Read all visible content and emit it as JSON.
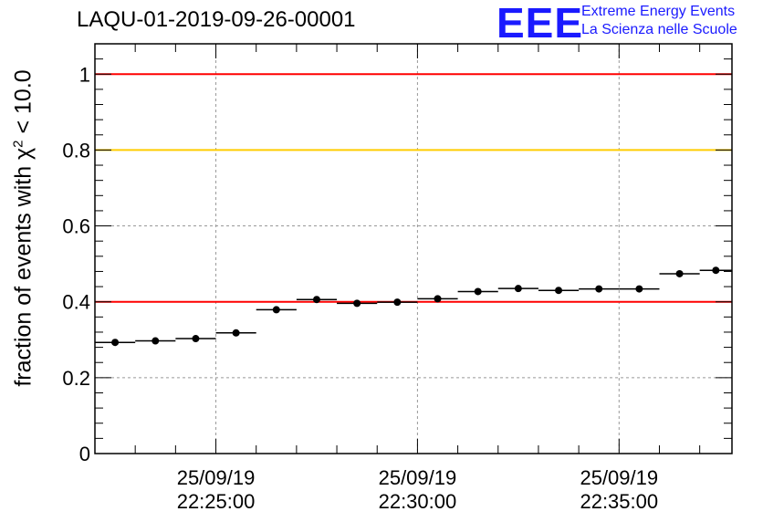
{
  "chart_data": {
    "type": "scatter",
    "title": "LAQU-01-2019-09-26-00001",
    "ylabel_prefix": "fraction of events with χ",
    "ylabel_sup": "2",
    "ylabel_suffix": " < 10.0",
    "xlabel": "",
    "ylim": [
      0,
      1.08
    ],
    "y_ticks": [
      {
        "value": 0,
        "label": "0"
      },
      {
        "value": 0.2,
        "label": "0.2"
      },
      {
        "value": 0.4,
        "label": "0.4"
      },
      {
        "value": 0.6,
        "label": "0.6"
      },
      {
        "value": 0.8,
        "label": "0.8"
      },
      {
        "value": 1.0,
        "label": "1"
      }
    ],
    "x_unit": "minutes after 22:22:00",
    "xlim": [
      0,
      15.8
    ],
    "x_ticks": [
      {
        "value": 3,
        "date": "25/09/19",
        "time": "22:25:00"
      },
      {
        "value": 8,
        "date": "25/09/19",
        "time": "22:30:00"
      },
      {
        "value": 13,
        "date": "25/09/19",
        "time": "22:35:00"
      }
    ],
    "reference_lines": [
      {
        "y": 1.0,
        "color": "#ff0000"
      },
      {
        "y": 0.8,
        "color": "#ffcc00"
      },
      {
        "y": 0.4,
        "color": "#ff0000"
      }
    ],
    "series": [
      {
        "name": "fraction",
        "color": "#000000",
        "points": [
          {
            "x0": 0.0,
            "x1": 1.0,
            "y": 0.293
          },
          {
            "x0": 1.0,
            "x1": 2.0,
            "y": 0.297
          },
          {
            "x0": 2.0,
            "x1": 3.0,
            "y": 0.303
          },
          {
            "x0": 3.0,
            "x1": 4.0,
            "y": 0.318
          },
          {
            "x0": 4.0,
            "x1": 5.0,
            "y": 0.379
          },
          {
            "x0": 5.0,
            "x1": 6.0,
            "y": 0.406
          },
          {
            "x0": 6.0,
            "x1": 7.0,
            "y": 0.396
          },
          {
            "x0": 7.0,
            "x1": 8.0,
            "y": 0.399
          },
          {
            "x0": 8.0,
            "x1": 9.0,
            "y": 0.408
          },
          {
            "x0": 9.0,
            "x1": 10.0,
            "y": 0.427
          },
          {
            "x0": 10.0,
            "x1": 11.0,
            "y": 0.435
          },
          {
            "x0": 11.0,
            "x1": 12.0,
            "y": 0.43
          },
          {
            "x0": 12.0,
            "x1": 13.0,
            "y": 0.434
          },
          {
            "x0": 13.0,
            "x1": 14.0,
            "y": 0.434
          },
          {
            "x0": 14.0,
            "x1": 15.0,
            "y": 0.474
          },
          {
            "x0": 15.0,
            "x1": 15.8,
            "y": 0.483
          }
        ]
      }
    ],
    "grid": true
  },
  "logo": {
    "mark": "EEE",
    "line1": "Extreme Energy Events",
    "line2": "La Scienza nelle Scuole"
  }
}
